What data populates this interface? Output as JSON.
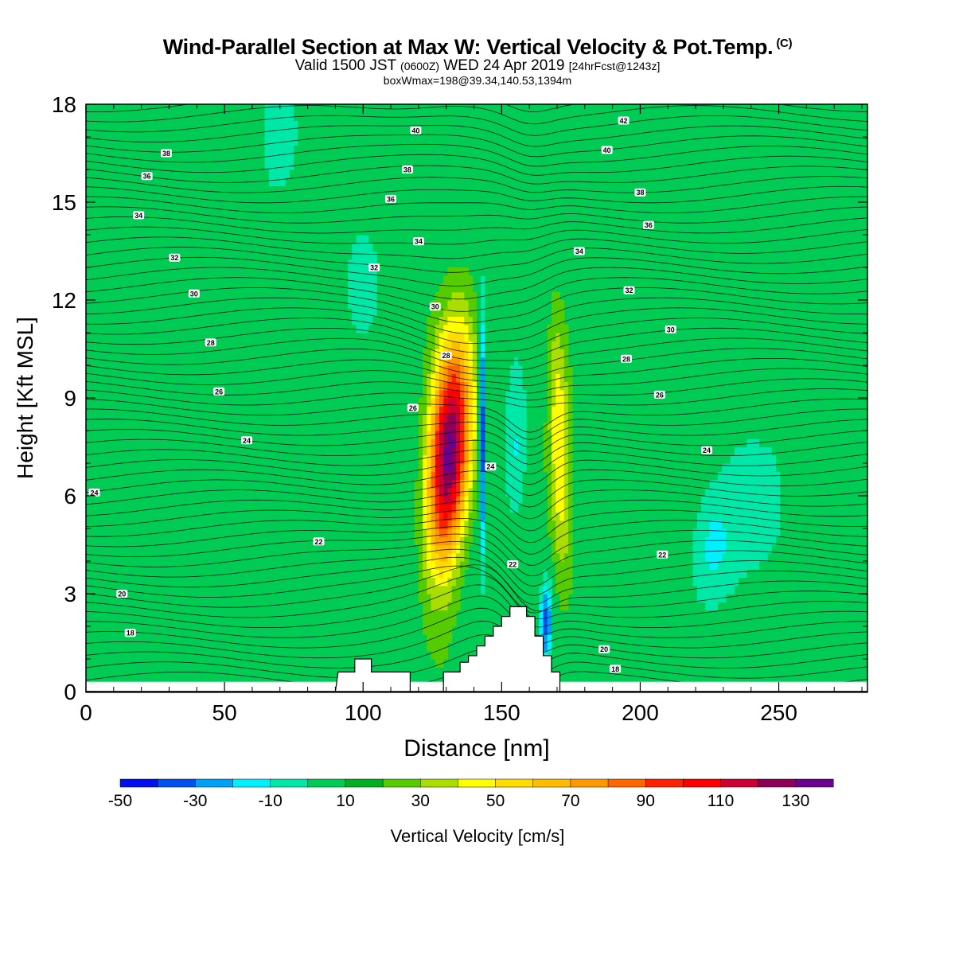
{
  "title": {
    "main": "Wind-Parallel Section at Max W: Vertical Velocity & Pot.Temp.",
    "copyright": "(C)",
    "valid_prefix": "Valid 1500 JST",
    "utc": "(0600Z)",
    "valid_date": "WED 24 Apr 2019",
    "forecast": "[24hrFcst@1243z]",
    "boxinfo": "boxWmax=198@39.34,140.53,1394m"
  },
  "chart_data": {
    "type": "heatmap",
    "xlabel": "Distance [nm]",
    "ylabel": "Height [Kft MSL]",
    "xlim": [
      0,
      282
    ],
    "ylim": [
      0,
      18
    ],
    "xticks": [
      0,
      50,
      100,
      150,
      200,
      250
    ],
    "yticks": [
      0,
      3,
      6,
      9,
      12,
      15,
      18
    ],
    "colorbar": {
      "label": "Vertical Velocity [cm/s]",
      "tick_labels": [
        "-50",
        "-30",
        "-10",
        "10",
        "30",
        "50",
        "70",
        "90",
        "110",
        "130"
      ],
      "levels": [
        -50,
        -40,
        -30,
        -20,
        -10,
        0,
        10,
        20,
        30,
        40,
        50,
        60,
        70,
        80,
        90,
        100,
        110,
        120,
        130,
        140
      ],
      "colors": [
        "#0010f0",
        "#0050f0",
        "#00a0f8",
        "#00f0ff",
        "#00e8a8",
        "#00cc55",
        "#00b020",
        "#55cc00",
        "#aadd00",
        "#ffff00",
        "#ffdd00",
        "#ffbb00",
        "#ff9900",
        "#ff6600",
        "#ff2200",
        "#ff0000",
        "#cc0033",
        "#8c0055",
        "#6a0090"
      ]
    },
    "background_w": 10,
    "updrafts": [
      {
        "name": "main updraft",
        "x": 131,
        "z": 7.2,
        "w_max": 140
      },
      {
        "name": "secondary updraft",
        "x": 171,
        "z": 7.5,
        "w_max": 50
      }
    ],
    "downdrafts": [
      {
        "name": "narrow downdraft",
        "x": 143,
        "z": 8.0,
        "w_min": -45
      },
      {
        "name": "lower downdraft",
        "x": 166,
        "z": 2.2,
        "w_min": -35
      },
      {
        "name": "weak downdraft",
        "x": 155,
        "z": 7.0,
        "w_min": -15
      },
      {
        "name": "weak downdraft east",
        "x": 225,
        "z": 4.5,
        "w_min": -10
      }
    ],
    "theta_contour_labels": [
      {
        "text": "38",
        "x": 29,
        "z": 16.5
      },
      {
        "text": "36",
        "x": 22,
        "z": 15.8
      },
      {
        "text": "34",
        "x": 19,
        "z": 14.6
      },
      {
        "text": "32",
        "x": 32,
        "z": 13.3
      },
      {
        "text": "30",
        "x": 39,
        "z": 12.2
      },
      {
        "text": "28",
        "x": 45,
        "z": 10.7
      },
      {
        "text": "26",
        "x": 48,
        "z": 9.2
      },
      {
        "text": "24",
        "x": 58,
        "z": 7.7
      },
      {
        "text": "24",
        "x": 3,
        "z": 6.1
      },
      {
        "text": "22",
        "x": 84,
        "z": 4.6
      },
      {
        "text": "20",
        "x": 13,
        "z": 3.0
      },
      {
        "text": "18",
        "x": 16,
        "z": 1.8
      },
      {
        "text": "40",
        "x": 119,
        "z": 17.2
      },
      {
        "text": "38",
        "x": 116,
        "z": 16.0
      },
      {
        "text": "36",
        "x": 110,
        "z": 15.1
      },
      {
        "text": "34",
        "x": 120,
        "z": 13.8
      },
      {
        "text": "32",
        "x": 104,
        "z": 13.0
      },
      {
        "text": "30",
        "x": 126,
        "z": 11.8
      },
      {
        "text": "28",
        "x": 130,
        "z": 10.3
      },
      {
        "text": "26",
        "x": 118,
        "z": 8.7
      },
      {
        "text": "24",
        "x": 146,
        "z": 6.9
      },
      {
        "text": "22",
        "x": 154,
        "z": 3.9
      },
      {
        "text": "42",
        "x": 194,
        "z": 17.5
      },
      {
        "text": "40",
        "x": 188,
        "z": 16.6
      },
      {
        "text": "38",
        "x": 200,
        "z": 15.3
      },
      {
        "text": "36",
        "x": 203,
        "z": 14.3
      },
      {
        "text": "34",
        "x": 178,
        "z": 13.5
      },
      {
        "text": "32",
        "x": 196,
        "z": 12.3
      },
      {
        "text": "30",
        "x": 211,
        "z": 11.1
      },
      {
        "text": "28",
        "x": 195,
        "z": 10.2
      },
      {
        "text": "26",
        "x": 207,
        "z": 9.1
      },
      {
        "text": "24",
        "x": 224,
        "z": 7.4
      },
      {
        "text": "22",
        "x": 208,
        "z": 4.2
      },
      {
        "text": "20",
        "x": 187,
        "z": 1.3
      },
      {
        "text": "18",
        "x": 191,
        "z": 0.7
      }
    ],
    "terrain": [
      [
        90,
        0
      ],
      [
        91,
        0.6
      ],
      [
        97,
        0.6
      ],
      [
        97,
        1.0
      ],
      [
        103,
        1.0
      ],
      [
        103,
        0.6
      ],
      [
        117,
        0.6
      ],
      [
        117,
        0
      ],
      [
        129,
        0
      ],
      [
        129,
        0.6
      ],
      [
        135,
        0.6
      ],
      [
        135,
        0.9
      ],
      [
        138,
        0.9
      ],
      [
        138,
        1.1
      ],
      [
        141,
        1.1
      ],
      [
        141,
        1.4
      ],
      [
        144,
        1.4
      ],
      [
        144,
        1.7
      ],
      [
        147,
        1.7
      ],
      [
        147,
        2.0
      ],
      [
        150,
        2.0
      ],
      [
        150,
        2.3
      ],
      [
        153,
        2.3
      ],
      [
        153,
        2.6
      ],
      [
        159,
        2.6
      ],
      [
        159,
        2.3
      ],
      [
        162,
        2.3
      ],
      [
        162,
        1.7
      ],
      [
        165,
        1.7
      ],
      [
        165,
        1.1
      ],
      [
        168,
        1.1
      ],
      [
        168,
        0.6
      ],
      [
        171,
        0.6
      ],
      [
        171,
        0
      ]
    ]
  }
}
